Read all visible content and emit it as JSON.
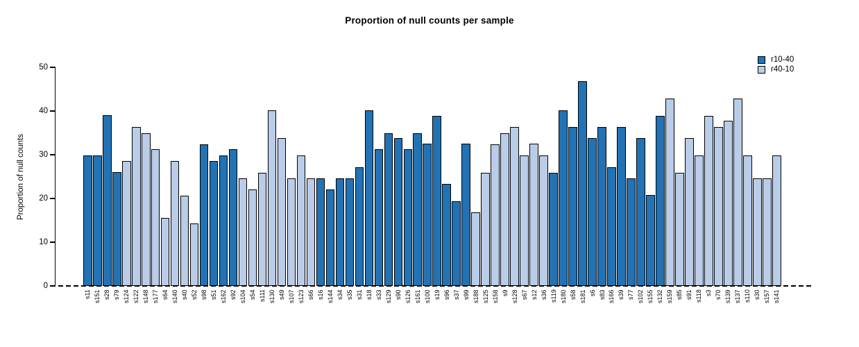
{
  "title": "Proportion of null counts per sample",
  "legend": {
    "items": [
      {
        "label": "r10-40",
        "color": "#2272b4"
      },
      {
        "label": "r40-10",
        "color": "#b9cce8"
      }
    ]
  },
  "chart_data": {
    "type": "bar",
    "title": "Proportion of null counts per sample",
    "xlabel": "",
    "ylabel": "Proportion of null counts",
    "ylim": [
      0,
      50
    ],
    "yticks": [
      0,
      10,
      20,
      30,
      40,
      50
    ],
    "zero_line_style": "dashed",
    "grid": false,
    "legend_position": "top-right",
    "series_colors": {
      "r10-40": "#2272b4",
      "r40-10": "#b9cce8"
    },
    "categories": [
      "s11",
      "s151",
      "s28",
      "s79",
      "s124",
      "s122",
      "s148",
      "s177",
      "s64",
      "s140",
      "s40",
      "s52",
      "s98",
      "s51",
      "s162",
      "s92",
      "s104",
      "s54",
      "s111",
      "s130",
      "s49",
      "s107",
      "s123",
      "s66",
      "s16",
      "s144",
      "s34",
      "s35",
      "s31",
      "s18",
      "s33",
      "s129",
      "s90",
      "s126",
      "s161",
      "s100",
      "s19",
      "s96",
      "s37",
      "s99",
      "s188",
      "s125",
      "s158",
      "s9",
      "s128",
      "s67",
      "s12",
      "s36",
      "s119",
      "s180",
      "s58",
      "s181",
      "s6",
      "s83",
      "s166",
      "s39",
      "s77",
      "s102",
      "s155",
      "s132",
      "s159",
      "s85",
      "s91",
      "s118",
      "s3",
      "s70",
      "s139",
      "s137",
      "s110",
      "s30",
      "s157",
      "s141"
    ],
    "values": [
      29.8,
      29.8,
      39.0,
      26.0,
      28.5,
      36.4,
      35.0,
      31.2,
      15.6,
      28.5,
      20.7,
      14.3,
      32.4,
      28.5,
      29.8,
      31.2,
      24.6,
      22.1,
      25.9,
      40.2,
      33.8,
      24.6,
      29.8,
      24.6,
      24.6,
      22.1,
      24.6,
      24.6,
      27.2,
      40.2,
      31.2,
      35.0,
      33.8,
      31.2,
      35.0,
      32.5,
      38.9,
      23.3,
      19.4,
      32.5,
      16.8,
      25.9,
      32.4,
      35.0,
      36.4,
      29.8,
      32.5,
      29.8,
      25.9,
      40.2,
      36.4,
      46.8,
      33.8,
      36.4,
      27.2,
      36.4,
      24.6,
      33.8,
      20.8,
      38.9,
      42.9,
      25.9,
      33.8,
      29.8,
      38.9,
      36.4,
      37.7,
      42.9,
      29.8,
      24.6,
      24.6,
      29.8
    ],
    "groups": [
      "r10-40",
      "r10-40",
      "r10-40",
      "r10-40",
      "r40-10",
      "r40-10",
      "r40-10",
      "r40-10",
      "r40-10",
      "r40-10",
      "r40-10",
      "r40-10",
      "r10-40",
      "r10-40",
      "r10-40",
      "r10-40",
      "r40-10",
      "r40-10",
      "r40-10",
      "r40-10",
      "r40-10",
      "r40-10",
      "r40-10",
      "r40-10",
      "r10-40",
      "r10-40",
      "r10-40",
      "r10-40",
      "r10-40",
      "r10-40",
      "r10-40",
      "r10-40",
      "r10-40",
      "r10-40",
      "r10-40",
      "r10-40",
      "r10-40",
      "r10-40",
      "r10-40",
      "r10-40",
      "r40-10",
      "r40-10",
      "r40-10",
      "r40-10",
      "r40-10",
      "r40-10",
      "r40-10",
      "r40-10",
      "r10-40",
      "r10-40",
      "r10-40",
      "r10-40",
      "r10-40",
      "r10-40",
      "r10-40",
      "r10-40",
      "r10-40",
      "r10-40",
      "r10-40",
      "r10-40",
      "r40-10",
      "r40-10",
      "r40-10",
      "r40-10",
      "r40-10",
      "r40-10",
      "r40-10",
      "r40-10",
      "r40-10",
      "r40-10",
      "r40-10",
      "r40-10"
    ]
  }
}
